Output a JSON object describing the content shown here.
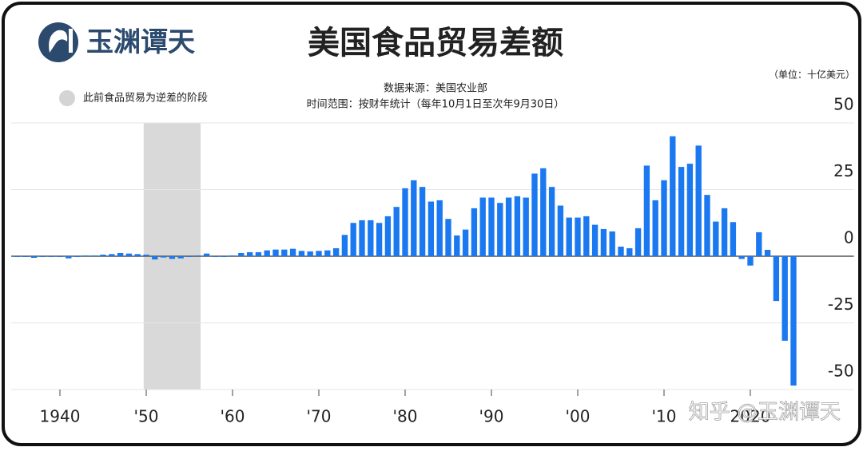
{
  "chart_data": {
    "type": "bar",
    "title": "美国食品贸易差额",
    "brand": "玉渊谭天",
    "source": "数据来源：美国农业部",
    "subtitle": "时间范围：按财年统计（每年10月1日至次年9月30日）",
    "unit": "（单位：十亿美元）",
    "shade_label": "此前食品贸易为逆差的阶段",
    "shade": [
      1949.7,
      1956.3
    ],
    "shade_color": "#d9d9d9",
    "watermark": "知乎 @玉渊谭天",
    "color": "#1a78f0",
    "x": [
      1935,
      1936,
      1937,
      1938,
      1939,
      1940,
      1941,
      1942,
      1943,
      1944,
      1945,
      1946,
      1947,
      1948,
      1949,
      1950,
      1951,
      1952,
      1953,
      1954,
      1955,
      1956,
      1957,
      1958,
      1959,
      1960,
      1961,
      1962,
      1963,
      1964,
      1965,
      1966,
      1967,
      1968,
      1969,
      1970,
      1971,
      1972,
      1973,
      1974,
      1975,
      1976,
      1977,
      1978,
      1979,
      1980,
      1981,
      1982,
      1983,
      1984,
      1985,
      1986,
      1987,
      1988,
      1989,
      1990,
      1991,
      1992,
      1993,
      1994,
      1995,
      1996,
      1997,
      1998,
      1999,
      2000,
      2001,
      2002,
      2003,
      2004,
      2005,
      2006,
      2007,
      2008,
      2009,
      2010,
      2011,
      2012,
      2013,
      2014,
      2015,
      2016,
      2017,
      2018,
      2019,
      2020,
      2021,
      2022,
      2023,
      2024,
      2025
    ],
    "values": [
      -0.3,
      -0.3,
      -0.6,
      -0.3,
      -0.3,
      -0.3,
      -0.8,
      -0.3,
      0.3,
      0.3,
      0.6,
      0.8,
      1.2,
      1,
      0.8,
      0.6,
      -1.2,
      -0.5,
      -1,
      -0.8,
      -0.3,
      0.3,
      1,
      -0.3,
      -0.3,
      0.3,
      1.2,
      1.5,
      1.5,
      2.2,
      2.5,
      2.5,
      2.8,
      2,
      1.8,
      2,
      2.2,
      3,
      8,
      12.5,
      13.5,
      13.5,
      12.5,
      15,
      18.5,
      25.5,
      28.5,
      26,
      20.5,
      21,
      14,
      7.8,
      10,
      18,
      22,
      22,
      20,
      22,
      22.5,
      22,
      31,
      33,
      26,
      19,
      14.5,
      14.5,
      15,
      11.8,
      10.2,
      9.3,
      3.6,
      3,
      10.5,
      34,
      21,
      28.5,
      45,
      33.5,
      34.7,
      41.5,
      23,
      13,
      18,
      12.8,
      -1,
      -3.5,
      9,
      2.4,
      -16.8,
      -31.7,
      -48.5
    ],
    "xlim": [
      1934,
      2032
    ],
    "xticks": [
      {
        "value": 1940,
        "label": "1940"
      },
      {
        "value": 1950,
        "label": "'50"
      },
      {
        "value": 1960,
        "label": "'60"
      },
      {
        "value": 1970,
        "label": "'70"
      },
      {
        "value": 1980,
        "label": "'80"
      },
      {
        "value": 1990,
        "label": "'90"
      },
      {
        "value": 2000,
        "label": "'00"
      },
      {
        "value": 2010,
        "label": "'10"
      },
      {
        "value": 2020,
        "label": "2020"
      }
    ],
    "ylim": [
      -50,
      50
    ],
    "yticks": [
      -50,
      -25,
      0,
      25,
      50
    ],
    "grid": true
  }
}
